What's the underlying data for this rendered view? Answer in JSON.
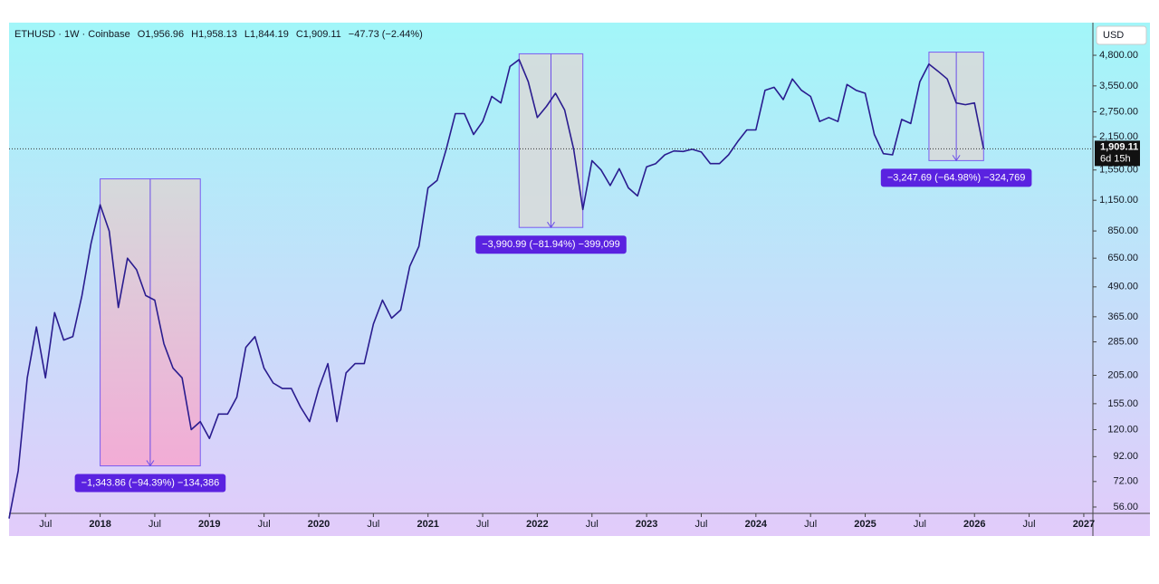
{
  "chart_data": {
    "type": "line",
    "header": [
      "ETHUSD · 1W · Coinbase",
      "O1,956.96",
      "H1,958.13",
      "L1,844.19",
      "C1,909.11",
      "−47.73 (−2.44%)"
    ],
    "currency": "USD",
    "countdown": "6d 15h",
    "last_price": {
      "value": 1909.11,
      "label": "1,909.11"
    },
    "log_scale": true,
    "xlim": [
      "2017-03",
      "2027-02"
    ],
    "ylim": [
      52.6,
      6620
    ],
    "yticks": [
      {
        "value": 56,
        "label": "56.00"
      },
      {
        "value": 72,
        "label": "72.00"
      },
      {
        "value": 92,
        "label": "92.00"
      },
      {
        "value": 120,
        "label": "120.00"
      },
      {
        "value": 155,
        "label": "155.00"
      },
      {
        "value": 205,
        "label": "205.00"
      },
      {
        "value": 285,
        "label": "285.00"
      },
      {
        "value": 365,
        "label": "365.00"
      },
      {
        "value": 490,
        "label": "490.00"
      },
      {
        "value": 650,
        "label": "650.00"
      },
      {
        "value": 850,
        "label": "850.00"
      },
      {
        "value": 1150,
        "label": "1,150.00"
      },
      {
        "value": 1550,
        "label": "1,550.00"
      },
      {
        "value": 2150,
        "label": "2,150.00"
      },
      {
        "value": 2750,
        "label": "2,750.00"
      },
      {
        "value": 3550,
        "label": "3,550.00"
      },
      {
        "value": 4800,
        "label": "4,800.00"
      }
    ],
    "xticks": [
      {
        "value": "2017-07",
        "label": "Jul"
      },
      {
        "value": "2018-01",
        "label": "2018"
      },
      {
        "value": "2018-07",
        "label": "Jul"
      },
      {
        "value": "2019-01",
        "label": "2019"
      },
      {
        "value": "2019-07",
        "label": "Jul"
      },
      {
        "value": "2020-01",
        "label": "2020"
      },
      {
        "value": "2020-07",
        "label": "Jul"
      },
      {
        "value": "2021-01",
        "label": "2021"
      },
      {
        "value": "2021-07",
        "label": "Jul"
      },
      {
        "value": "2022-01",
        "label": "2022"
      },
      {
        "value": "2022-07",
        "label": "Jul"
      },
      {
        "value": "2023-01",
        "label": "2023"
      },
      {
        "value": "2023-07",
        "label": "Jul"
      },
      {
        "value": "2024-01",
        "label": "2024"
      },
      {
        "value": "2024-07",
        "label": "Jul"
      },
      {
        "value": "2025-01",
        "label": "2025"
      },
      {
        "value": "2025-07",
        "label": "Jul"
      },
      {
        "value": "2026-01",
        "label": "2026"
      },
      {
        "value": "2026-07",
        "label": "Jul"
      },
      {
        "value": "2027-01",
        "label": "2027"
      }
    ],
    "x": [
      "2017-03",
      "2017-04",
      "2017-05",
      "2017-06",
      "2017-07",
      "2017-08",
      "2017-09",
      "2017-10",
      "2017-11",
      "2017-12",
      "2018-01",
      "2018-02",
      "2018-03",
      "2018-04",
      "2018-05",
      "2018-06",
      "2018-07",
      "2018-08",
      "2018-09",
      "2018-10",
      "2018-11",
      "2018-12",
      "2019-01",
      "2019-02",
      "2019-03",
      "2019-04",
      "2019-05",
      "2019-06",
      "2019-07",
      "2019-08",
      "2019-09",
      "2019-10",
      "2019-11",
      "2019-12",
      "2020-01",
      "2020-02",
      "2020-03",
      "2020-04",
      "2020-05",
      "2020-06",
      "2020-07",
      "2020-08",
      "2020-09",
      "2020-10",
      "2020-11",
      "2020-12",
      "2021-01",
      "2021-02",
      "2021-03",
      "2021-04",
      "2021-05",
      "2021-06",
      "2021-07",
      "2021-08",
      "2021-09",
      "2021-10",
      "2021-11",
      "2021-12",
      "2022-01",
      "2022-02",
      "2022-03",
      "2022-04",
      "2022-05",
      "2022-06",
      "2022-07",
      "2022-08",
      "2022-09",
      "2022-10",
      "2022-11",
      "2022-12",
      "2023-01",
      "2023-02",
      "2023-03",
      "2023-04",
      "2023-05",
      "2023-06",
      "2023-07",
      "2023-08",
      "2023-09",
      "2023-10",
      "2023-11",
      "2023-12",
      "2024-01",
      "2024-02",
      "2024-03",
      "2024-04",
      "2024-05",
      "2024-06",
      "2024-07",
      "2024-08",
      "2024-09",
      "2024-10",
      "2024-11",
      "2024-12",
      "2025-01",
      "2025-02",
      "2025-03",
      "2025-04",
      "2025-05",
      "2025-06",
      "2025-07",
      "2025-08",
      "2025-09",
      "2025-10",
      "2025-11",
      "2025-12",
      "2026-01",
      "2026-02"
    ],
    "series": [
      {
        "name": "ETHUSD",
        "color": "#2a1c8f",
        "values": [
          50,
          80,
          200,
          330,
          200,
          380,
          290,
          300,
          450,
          750,
          1100,
          850,
          400,
          650,
          580,
          450,
          430,
          280,
          220,
          200,
          120,
          130,
          110,
          140,
          140,
          165,
          270,
          300,
          220,
          190,
          180,
          180,
          150,
          130,
          180,
          230,
          130,
          210,
          230,
          230,
          340,
          430,
          360,
          390,
          600,
          730,
          1300,
          1400,
          1900,
          2700,
          2700,
          2200,
          2500,
          3200,
          3000,
          4300,
          4600,
          3700,
          2600,
          2900,
          3300,
          2800,
          1900,
          1050,
          1700,
          1550,
          1330,
          1570,
          1300,
          1200,
          1600,
          1650,
          1800,
          1870,
          1860,
          1900,
          1850,
          1650,
          1650,
          1800,
          2050,
          2300,
          2300,
          3400,
          3500,
          3100,
          3800,
          3400,
          3200,
          2500,
          2600,
          2500,
          3600,
          3400,
          3300,
          2200,
          1820,
          1800,
          2550,
          2450,
          3700,
          4400,
          4100,
          3800,
          3000,
          2950,
          3000,
          1909.11
        ]
      }
    ],
    "measures": [
      {
        "label": "−1,343.86 (−94.39%) −134,386",
        "start": "2018-01",
        "end": "2018-12",
        "high": 1420,
        "low": 84
      },
      {
        "label": "−3,990.99 (−81.94%) −399,099",
        "start": "2021-11",
        "end": "2022-06",
        "high": 4870,
        "low": 880
      },
      {
        "label": "−3,247.69 (−64.98%) −324,769",
        "start": "2025-08",
        "end": "2026-02",
        "high": 4950,
        "low": 1700
      }
    ]
  }
}
